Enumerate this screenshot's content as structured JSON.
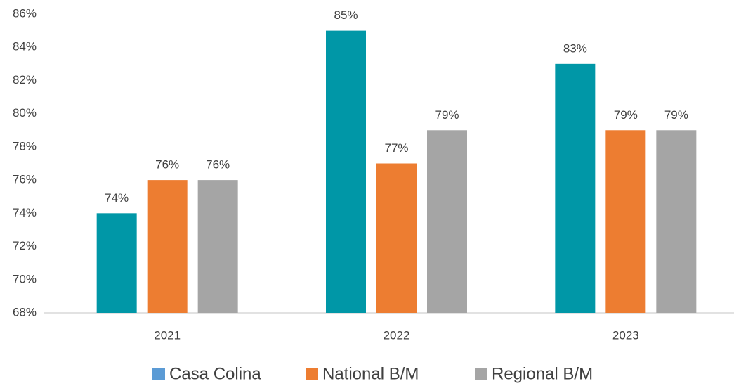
{
  "chart_data": {
    "type": "bar",
    "categories": [
      "2021",
      "2022",
      "2023"
    ],
    "series": [
      {
        "name": "Casa Colina",
        "color": "#0097a7",
        "legend_color": "#5b9bd5",
        "values": [
          74,
          85,
          83
        ],
        "value_labels": [
          "74%",
          "85%",
          "83%"
        ]
      },
      {
        "name": "National B/M",
        "color": "#ed7d31",
        "legend_color": "#ed7d31",
        "values": [
          76,
          77,
          79
        ],
        "value_labels": [
          "76%",
          "77%",
          "79%"
        ]
      },
      {
        "name": "Regional B/M",
        "color": "#a5a5a5",
        "legend_color": "#a5a5a5",
        "values": [
          76,
          79,
          79
        ],
        "value_labels": [
          "76%",
          "79%",
          "79%"
        ]
      }
    ],
    "ylim": [
      68,
      86
    ],
    "yticks": [
      {
        "value": 68,
        "label": "68%"
      },
      {
        "value": 70,
        "label": "70%"
      },
      {
        "value": 72,
        "label": "72%"
      },
      {
        "value": 74,
        "label": "74%"
      },
      {
        "value": 76,
        "label": "76%"
      },
      {
        "value": 78,
        "label": "78%"
      },
      {
        "value": 80,
        "label": "80%"
      },
      {
        "value": 82,
        "label": "82%"
      },
      {
        "value": 84,
        "label": "84%"
      },
      {
        "value": 86,
        "label": "86%"
      }
    ],
    "grid": false,
    "legend": "bottom"
  }
}
